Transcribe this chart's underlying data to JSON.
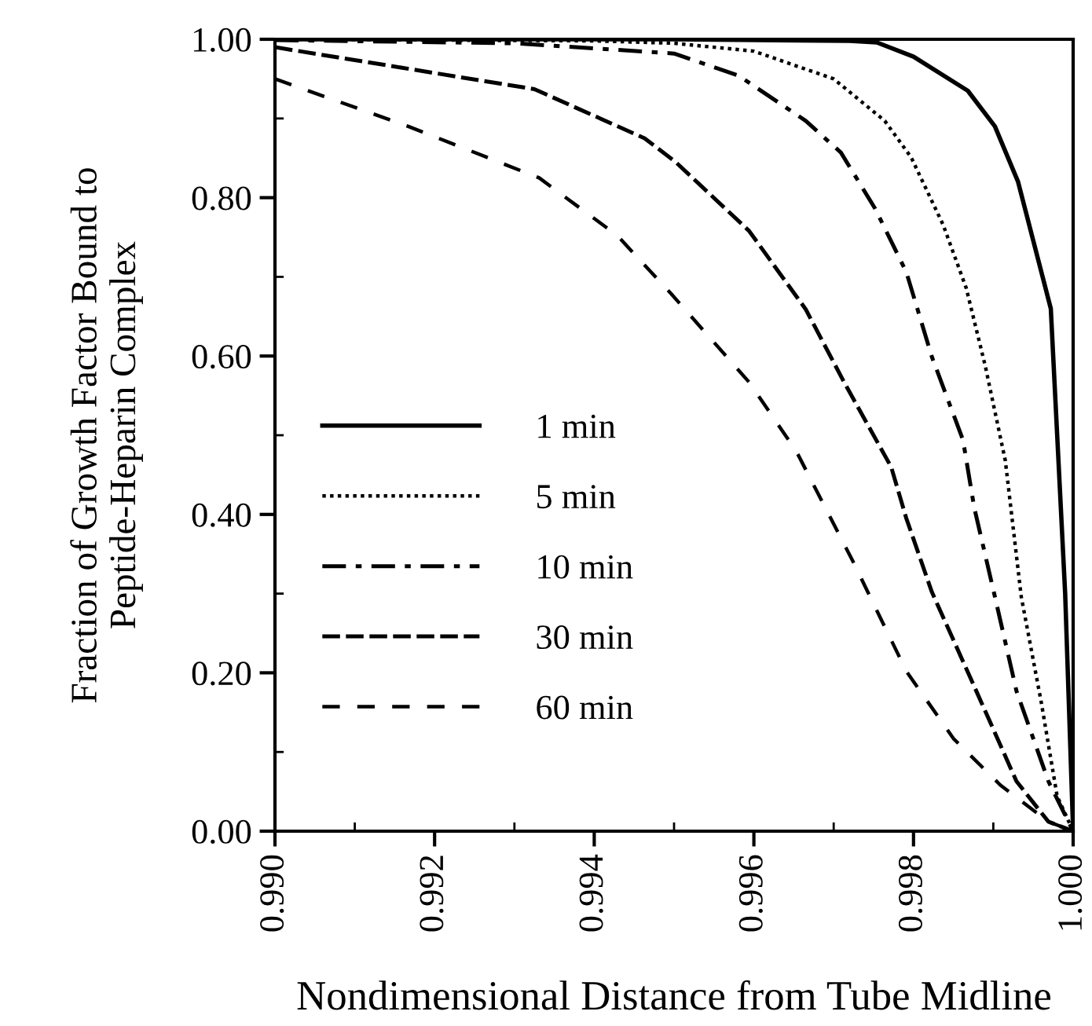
{
  "chart_data": {
    "type": "line",
    "xlabel": "Nondimensional Distance from Tube Midline",
    "ylabel": "Fraction of Growth Factor Bound to\nPeptide-Heparin Complex",
    "xlim": [
      0.99,
      1.0
    ],
    "ylim": [
      0.0,
      1.0
    ],
    "xticks": [
      {
        "value": 0.99,
        "label": "0.990"
      },
      {
        "value": 0.992,
        "label": "0.992"
      },
      {
        "value": 0.994,
        "label": "0.994"
      },
      {
        "value": 0.996,
        "label": "0.996"
      },
      {
        "value": 0.998,
        "label": "0.998"
      },
      {
        "value": 1.0,
        "label": "1.000"
      }
    ],
    "yticks": [
      {
        "value": 0.0,
        "label": "0.00"
      },
      {
        "value": 0.2,
        "label": "0.20"
      },
      {
        "value": 0.4,
        "label": "0.40"
      },
      {
        "value": 0.6,
        "label": "0.60"
      },
      {
        "value": 0.8,
        "label": "0.80"
      },
      {
        "value": 1.0,
        "label": "1.00"
      }
    ],
    "legend": "center left",
    "grid": false,
    "series": [
      {
        "name": "1 min",
        "color": "#000000",
        "line_style": "solid",
        "x": [
          0.99,
          0.995,
          0.9972,
          0.99754,
          0.998,
          0.99868,
          0.99902,
          0.99931,
          0.99972,
          0.9999,
          1.0
        ],
        "values": [
          1.0,
          1.0,
          0.998,
          0.996,
          0.978,
          0.935,
          0.89,
          0.82,
          0.66,
          0.3,
          0.0
        ]
      },
      {
        "name": "5 min",
        "color": "#000000",
        "line_style": "dotted",
        "x": [
          0.99,
          0.994,
          0.995,
          0.996,
          0.997,
          0.99764,
          0.99797,
          0.99837,
          0.99866,
          0.9989,
          0.99915,
          0.99935,
          0.9996,
          0.9998,
          1.0
        ],
        "values": [
          1.0,
          0.998,
          0.995,
          0.985,
          0.95,
          0.897,
          0.851,
          0.766,
          0.686,
          0.587,
          0.468,
          0.296,
          0.163,
          0.044,
          0.0
        ]
      },
      {
        "name": "10 min",
        "color": "#000000",
        "line_style": "dashdot",
        "x": [
          0.99,
          0.993,
          0.995,
          0.99581,
          0.99665,
          0.99709,
          0.99752,
          0.99791,
          0.99823,
          0.99862,
          0.99876,
          0.99902,
          0.99929,
          0.99969,
          1.0
        ],
        "values": [
          0.999,
          0.995,
          0.982,
          0.954,
          0.897,
          0.857,
          0.786,
          0.706,
          0.599,
          0.494,
          0.409,
          0.296,
          0.177,
          0.063,
          0.0
        ]
      },
      {
        "name": "30 min",
        "color": "#000000",
        "line_style": "dashed",
        "x": [
          0.99,
          0.99325,
          0.99463,
          0.99502,
          0.99594,
          0.99665,
          0.99713,
          0.99772,
          0.99791,
          0.99823,
          0.99876,
          0.99929,
          0.99969,
          1.0
        ],
        "values": [
          0.99,
          0.937,
          0.875,
          0.845,
          0.758,
          0.659,
          0.567,
          0.46,
          0.395,
          0.302,
          0.183,
          0.063,
          0.012,
          0.0
        ]
      },
      {
        "name": "60 min",
        "color": "#000000",
        "line_style": "shortdash",
        "x": [
          0.99,
          0.99167,
          0.99331,
          0.99429,
          0.99496,
          0.99594,
          0.99653,
          0.99724,
          0.99791,
          0.9985,
          0.99909,
          0.99969,
          1.0
        ],
        "values": [
          0.95,
          0.89,
          0.825,
          0.752,
          0.679,
          0.567,
          0.48,
          0.341,
          0.202,
          0.117,
          0.058,
          0.012,
          0.0
        ]
      }
    ]
  }
}
